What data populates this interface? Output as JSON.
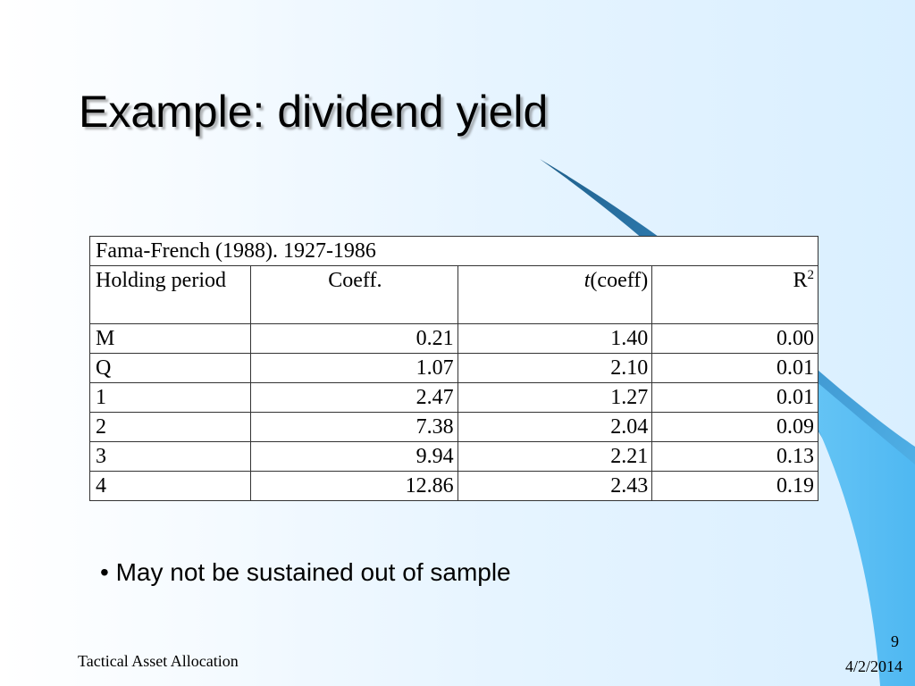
{
  "slide": {
    "title": "Example: dividend yield",
    "bullet_marker": "•",
    "bullet_text": "May not be sustained out of sample",
    "footer_left": "Tactical Asset Allocation",
    "slide_number": "9",
    "date": "4/2/2014"
  },
  "table": {
    "caption": "Fama-French (1988). 1927-1986",
    "headers": {
      "period": "Holding period",
      "coeff": "Coeff.",
      "t_prefix": "t",
      "t_suffix": "(coeff)",
      "r2_base": "R",
      "r2_sup": "2"
    },
    "rows": [
      {
        "period": "M",
        "coeff": "0.21",
        "t": "1.40",
        "r2": "0.00"
      },
      {
        "period": "Q",
        "coeff": "1.07",
        "t": "2.10",
        "r2": "0.01"
      },
      {
        "period": "1",
        "coeff": "2.47",
        "t": "1.27",
        "r2": "0.01"
      },
      {
        "period": "2",
        "coeff": "7.38",
        "t": "2.04",
        "r2": "0.09"
      },
      {
        "period": "3",
        "coeff": "9.94",
        "t": "2.21",
        "r2": "0.13"
      },
      {
        "period": "4",
        "coeff": "12.86",
        "t": "2.43",
        "r2": "0.19"
      }
    ]
  },
  "theme": {
    "swoosh_dark": "#1f5f8b",
    "swoosh_light": "#5cc3f7"
  }
}
